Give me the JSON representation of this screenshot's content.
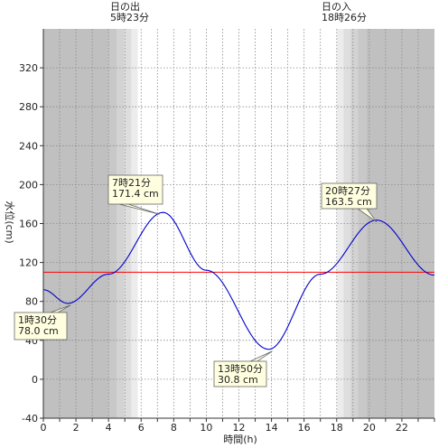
{
  "sun": {
    "sunrise_label": "日の出",
    "sunrise_time": "5時23分",
    "sunset_label": "日の入",
    "sunset_time": "18時26分"
  },
  "chart_data": {
    "type": "line",
    "title": "",
    "xlabel": "時間(h)",
    "ylabel": "水位(cm)",
    "xlim": [
      0,
      24
    ],
    "ylim": [
      -40,
      360
    ],
    "x_ticks": [
      0,
      2,
      4,
      6,
      8,
      10,
      12,
      14,
      16,
      18,
      20,
      22
    ],
    "y_ticks": [
      -40,
      0,
      40,
      80,
      120,
      160,
      200,
      240,
      280,
      320
    ],
    "grid": true,
    "reference_line": {
      "y": 110,
      "color": "#ff0000"
    },
    "series": [
      {
        "color": "#0000cc",
        "x": [
          0,
          1.5,
          4,
          7.35,
          10,
          13.83,
          17,
          20.45,
          24
        ],
        "y": [
          92,
          78.0,
          108,
          171.4,
          112,
          30.8,
          108,
          163.5,
          107
        ]
      }
    ],
    "extremes": [
      {
        "time": 1.5,
        "value": 78.0,
        "label_time": "1時30分",
        "label_value": "78.0 cm",
        "kind": "low"
      },
      {
        "time": 7.35,
        "value": 171.4,
        "label_time": "7時21分",
        "label_value": "171.4 cm",
        "kind": "high"
      },
      {
        "time": 13.83,
        "value": 30.8,
        "label_time": "13時50分",
        "label_value": "30.8 cm",
        "kind": "low"
      },
      {
        "time": 20.45,
        "value": 163.5,
        "label_time": "20時27分",
        "label_value": "163.5 cm",
        "kind": "high"
      }
    ],
    "daylight": {
      "sunrise": 5.383,
      "sunset": 18.433
    }
  }
}
